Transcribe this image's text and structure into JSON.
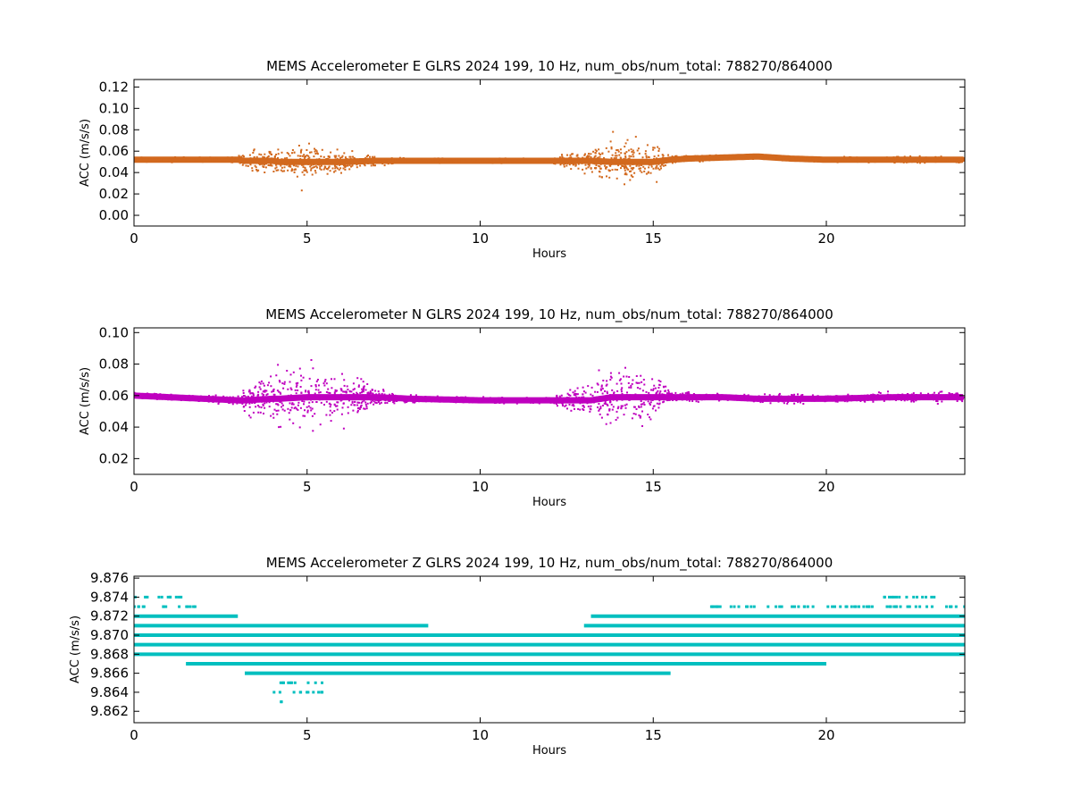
{
  "chart_data": [
    {
      "type": "scatter",
      "title": "MEMS Accelerometer E GLRS 2024 199, 10 Hz, num_obs/num_total: 788270/864000",
      "xlabel": "Hours",
      "ylabel": "ACC (m/s/s)",
      "xlim": [
        0,
        24
      ],
      "ylim": [
        -0.01,
        0.127
      ],
      "x_ticks": [
        "0",
        "5",
        "10",
        "15",
        "20"
      ],
      "x_tick_values": [
        0,
        5,
        10,
        15,
        20
      ],
      "y_ticks": [
        "0.00",
        "0.02",
        "0.04",
        "0.06",
        "0.08",
        "0.10",
        "0.12"
      ],
      "y_tick_values": [
        0.0,
        0.02,
        0.04,
        0.06,
        0.08,
        0.1,
        0.12
      ],
      "grid": false,
      "color": "#d2691e",
      "series": [
        {
          "x": [
            0,
            1,
            2,
            3,
            3.2,
            4,
            4.2,
            5,
            5.2,
            6,
            7,
            8,
            10,
            12,
            13.2,
            13.8,
            14.5,
            15,
            15.5,
            16,
            17,
            18,
            19,
            20,
            22,
            24
          ],
          "y_center": [
            0.052,
            0.052,
            0.052,
            0.052,
            0.051,
            0.051,
            0.05,
            0.05,
            0.05,
            0.05,
            0.051,
            0.051,
            0.051,
            0.051,
            0.051,
            0.05,
            0.05,
            0.05,
            0.052,
            0.053,
            0.054,
            0.055,
            0.053,
            0.052,
            0.052,
            0.052
          ],
          "y_spread": [
            0.002,
            0.002,
            0.002,
            0.003,
            0.008,
            0.014,
            0.016,
            0.018,
            0.016,
            0.01,
            0.004,
            0.002,
            0.002,
            0.002,
            0.012,
            0.02,
            0.02,
            0.018,
            0.004,
            0.003,
            0.002,
            0.002,
            0.002,
            0.002,
            0.003,
            0.003
          ]
        }
      ]
    },
    {
      "type": "scatter",
      "title": "MEMS Accelerometer N GLRS 2024 199, 10 Hz, num_obs/num_total: 788270/864000",
      "xlabel": "Hours",
      "ylabel": "ACC (m/s/s)",
      "xlim": [
        0,
        24
      ],
      "ylim": [
        0.01,
        0.103
      ],
      "x_ticks": [
        "0",
        "5",
        "10",
        "15",
        "20"
      ],
      "x_tick_values": [
        0,
        5,
        10,
        15,
        20
      ],
      "y_ticks": [
        "0.02",
        "0.04",
        "0.06",
        "0.08",
        "0.10"
      ],
      "y_tick_values": [
        0.02,
        0.04,
        0.06,
        0.08,
        0.1
      ],
      "grid": false,
      "color": "#bf00bf",
      "series": [
        {
          "x": [
            0,
            1,
            2,
            3,
            3.2,
            4,
            4.2,
            5,
            5.2,
            6,
            7,
            8,
            10,
            12,
            13.2,
            13.8,
            14.5,
            15,
            15.5,
            16,
            17,
            18,
            19,
            20,
            22,
            24
          ],
          "y_center": [
            0.06,
            0.059,
            0.058,
            0.057,
            0.057,
            0.058,
            0.058,
            0.059,
            0.059,
            0.059,
            0.059,
            0.058,
            0.057,
            0.057,
            0.057,
            0.059,
            0.059,
            0.059,
            0.059,
            0.059,
            0.059,
            0.058,
            0.058,
            0.058,
            0.059,
            0.059
          ],
          "y_spread": [
            0.002,
            0.002,
            0.002,
            0.003,
            0.008,
            0.016,
            0.018,
            0.02,
            0.018,
            0.014,
            0.006,
            0.002,
            0.002,
            0.002,
            0.012,
            0.018,
            0.018,
            0.016,
            0.004,
            0.003,
            0.002,
            0.002,
            0.003,
            0.002,
            0.003,
            0.003
          ]
        }
      ]
    },
    {
      "type": "scatter",
      "title": "MEMS Accelerometer Z GLRS 2024 199, 10 Hz, num_obs/num_total: 788270/864000",
      "xlabel": "Hours",
      "ylabel": "ACC (m/s/s)",
      "xlim": [
        0,
        24
      ],
      "ylim": [
        9.8608,
        9.8762
      ],
      "x_ticks": [
        "0",
        "5",
        "10",
        "15",
        "20"
      ],
      "x_tick_values": [
        0,
        5,
        10,
        15,
        20
      ],
      "y_ticks": [
        "9.862",
        "9.864",
        "9.866",
        "9.868",
        "9.870",
        "9.872",
        "9.874",
        "9.876"
      ],
      "y_tick_values": [
        9.862,
        9.864,
        9.866,
        9.868,
        9.87,
        9.872,
        9.874,
        9.876
      ],
      "grid": false,
      "color": "#00bfbf",
      "levels": [
        {
          "y": 9.874,
          "start": 0,
          "end": 1.4,
          "density": "sparse"
        },
        {
          "y": 9.873,
          "start": 0,
          "end": 1.8,
          "density": "sparse"
        },
        {
          "y": 9.872,
          "start": 0,
          "end": 3.0,
          "density": "dense"
        },
        {
          "y": 9.871,
          "start": 0,
          "end": 8.5,
          "density": "dense"
        },
        {
          "y": 9.87,
          "start": 0,
          "end": 24,
          "density": "dense"
        },
        {
          "y": 9.869,
          "start": 0,
          "end": 24,
          "density": "dense"
        },
        {
          "y": 9.868,
          "start": 0,
          "end": 24,
          "density": "dense"
        },
        {
          "y": 9.867,
          "start": 1.5,
          "end": 20,
          "density": "dense"
        },
        {
          "y": 9.866,
          "start": 3.2,
          "end": 15.5,
          "density": "dense"
        },
        {
          "y": 9.865,
          "start": 4.2,
          "end": 5.5,
          "density": "sparse"
        },
        {
          "y": 9.864,
          "start": 4.0,
          "end": 5.5,
          "density": "sparse"
        },
        {
          "y": 9.863,
          "start": 4.2,
          "end": 4.3,
          "density": "sparse"
        },
        {
          "y": 9.872,
          "start": 13.2,
          "end": 24,
          "density": "dense"
        },
        {
          "y": 9.871,
          "start": 13.0,
          "end": 24,
          "density": "dense"
        },
        {
          "y": 9.873,
          "start": 16.5,
          "end": 24,
          "density": "sparse"
        },
        {
          "y": 9.874,
          "start": 21.5,
          "end": 23.2,
          "density": "sparse"
        }
      ]
    }
  ]
}
